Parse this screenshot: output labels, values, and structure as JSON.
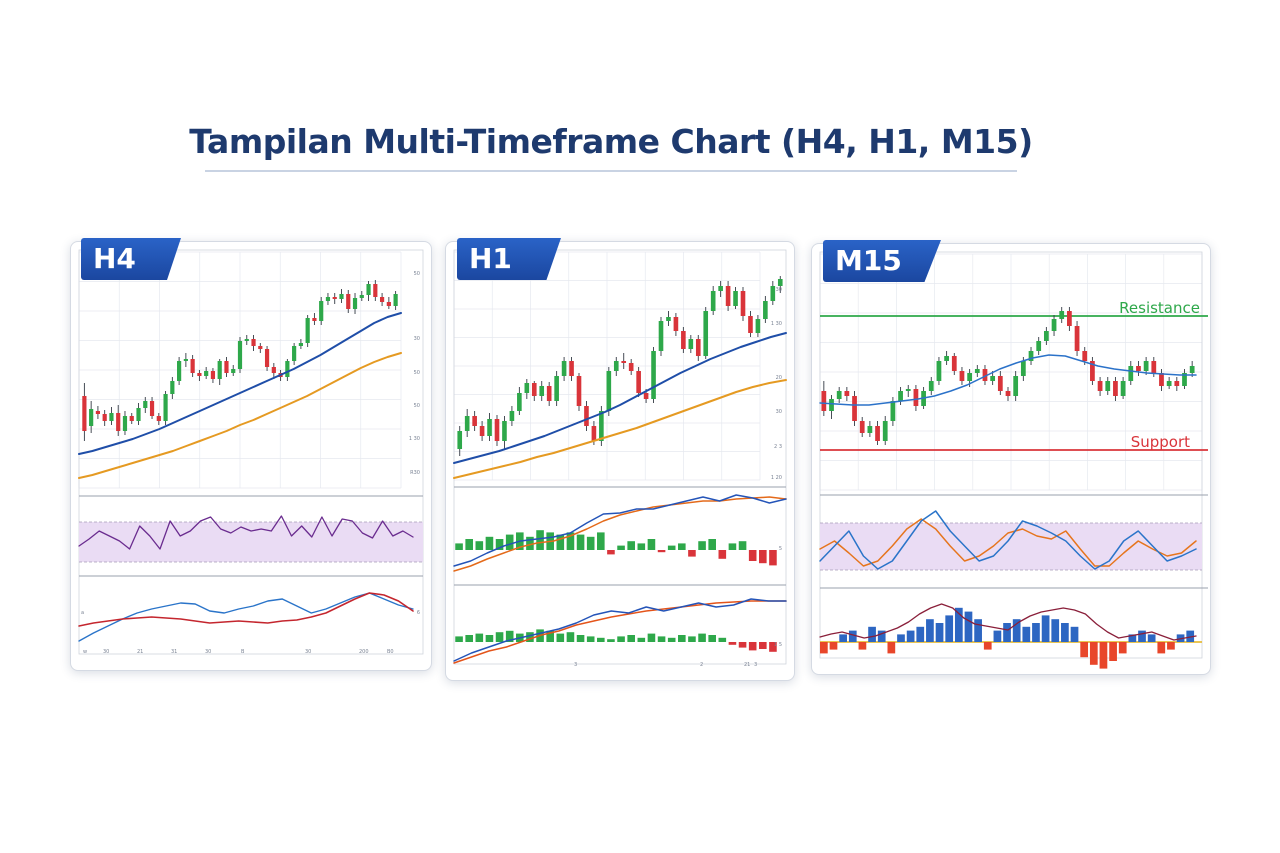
{
  "title": "Tampilan Multi-Timeframe Chart (H4, H1, M15)",
  "colors": {
    "title": "#1e3a6e",
    "label_bg": "#1f52b3",
    "candle_up": "#2ea84a",
    "candle_down": "#d9343a",
    "ma_fast": "#1f4ea8",
    "ma_slow": "#e59a22",
    "resistance": "#2ea84a",
    "support": "#d9343a",
    "band": "#eadcf4"
  },
  "chart_data": [
    {
      "type": "candlestick",
      "timeframe": "H4",
      "panes": [
        "price",
        "oscillator",
        "lines"
      ],
      "candles": [
        [
          395,
          430,
          382,
          440
        ],
        [
          425,
          408,
          400,
          432
        ],
        [
          410,
          413,
          405,
          418
        ],
        [
          413,
          420,
          409,
          425
        ],
        [
          420,
          412,
          406,
          424
        ],
        [
          412,
          430,
          404,
          435
        ],
        [
          430,
          415,
          410,
          434
        ],
        [
          415,
          420,
          412,
          423
        ],
        [
          420,
          407,
          402,
          424
        ],
        [
          407,
          400,
          396,
          412
        ],
        [
          400,
          415,
          396,
          418
        ],
        [
          415,
          420,
          412,
          424
        ],
        [
          420,
          393,
          390,
          424
        ],
        [
          393,
          380,
          376,
          398
        ],
        [
          380,
          360,
          356,
          384
        ],
        [
          360,
          358,
          352,
          366
        ],
        [
          358,
          372,
          354,
          376
        ],
        [
          372,
          375,
          369,
          380
        ],
        [
          375,
          370,
          366,
          378
        ],
        [
          370,
          378,
          367,
          382
        ],
        [
          378,
          360,
          358,
          384
        ],
        [
          360,
          372,
          356,
          376
        ],
        [
          372,
          368,
          364,
          375
        ],
        [
          368,
          340,
          336,
          372
        ],
        [
          340,
          338,
          334,
          344
        ],
        [
          338,
          345,
          334,
          350
        ],
        [
          345,
          348,
          342,
          352
        ],
        [
          348,
          366,
          345,
          370
        ],
        [
          366,
          372,
          362,
          378
        ],
        [
          372,
          376,
          369,
          380
        ],
        [
          376,
          360,
          358,
          380
        ],
        [
          360,
          345,
          342,
          364
        ],
        [
          345,
          342,
          338,
          348
        ],
        [
          342,
          317,
          314,
          346
        ],
        [
          317,
          320,
          312,
          324
        ],
        [
          320,
          300,
          296,
          324
        ],
        [
          300,
          296,
          292,
          304
        ],
        [
          296,
          298,
          292,
          303
        ],
        [
          298,
          293,
          288,
          302
        ],
        [
          293,
          308,
          289,
          312
        ],
        [
          308,
          297,
          292,
          313
        ],
        [
          297,
          294,
          290,
          300
        ],
        [
          294,
          283,
          280,
          300
        ],
        [
          283,
          296,
          279,
          300
        ],
        [
          296,
          301,
          292,
          305
        ],
        [
          301,
          305,
          296,
          308
        ],
        [
          305,
          293,
          290,
          309
        ]
      ],
      "ma_fast": [
        453,
        450,
        446,
        442,
        438,
        433,
        428,
        422,
        416,
        410,
        404,
        398,
        392,
        386,
        380,
        374,
        368,
        361,
        354,
        346,
        338,
        330,
        322,
        316,
        312
      ],
      "ma_slow": [
        477,
        474,
        470,
        466,
        462,
        458,
        454,
        450,
        445,
        440,
        435,
        430,
        424,
        419,
        413,
        407,
        401,
        395,
        388,
        381,
        374,
        367,
        361,
        356,
        352
      ],
      "osc": [
        545,
        538,
        530,
        535,
        540,
        548,
        525,
        535,
        548,
        520,
        535,
        530,
        520,
        516,
        528,
        532,
        526,
        530,
        528,
        530,
        515,
        535,
        525,
        536,
        516,
        535,
        518,
        520,
        532,
        537,
        520,
        535,
        530,
        536
      ]
    },
    {
      "type": "candlestick",
      "timeframe": "H1",
      "panes": [
        "price",
        "histogram",
        "histogram"
      ],
      "candles": [
        [
          448,
          430,
          425,
          455
        ],
        [
          430,
          415,
          408,
          436
        ],
        [
          415,
          425,
          410,
          430
        ],
        [
          425,
          435,
          420,
          440
        ],
        [
          435,
          418,
          412,
          440
        ],
        [
          418,
          440,
          414,
          445
        ],
        [
          440,
          420,
          415,
          448
        ],
        [
          420,
          410,
          405,
          425
        ],
        [
          410,
          392,
          386,
          414
        ],
        [
          392,
          382,
          378,
          398
        ],
        [
          382,
          395,
          380,
          400
        ],
        [
          395,
          385,
          380,
          400
        ],
        [
          385,
          400,
          381,
          405
        ],
        [
          400,
          375,
          370,
          405
        ],
        [
          375,
          360,
          356,
          380
        ],
        [
          360,
          375,
          356,
          380
        ],
        [
          375,
          405,
          372,
          410
        ],
        [
          405,
          425,
          400,
          430
        ],
        [
          425,
          440,
          420,
          444
        ],
        [
          440,
          410,
          405,
          445
        ],
        [
          410,
          370,
          366,
          415
        ],
        [
          370,
          360,
          356,
          375
        ],
        [
          360,
          362,
          352,
          368
        ],
        [
          362,
          370,
          358,
          374
        ],
        [
          370,
          392,
          366,
          396
        ],
        [
          392,
          398,
          388,
          402
        ],
        [
          398,
          350,
          346,
          402
        ],
        [
          350,
          320,
          316,
          355
        ],
        [
          320,
          316,
          310,
          325
        ],
        [
          316,
          330,
          312,
          335
        ],
        [
          330,
          348,
          326,
          352
        ],
        [
          348,
          338,
          334,
          352
        ],
        [
          338,
          355,
          334,
          360
        ],
        [
          355,
          310,
          306,
          358
        ],
        [
          310,
          290,
          285,
          314
        ],
        [
          290,
          285,
          280,
          296
        ],
        [
          285,
          305,
          280,
          310
        ],
        [
          305,
          290,
          286,
          308
        ],
        [
          290,
          315,
          286,
          320
        ],
        [
          315,
          332,
          310,
          336
        ],
        [
          332,
          318,
          314,
          336
        ],
        [
          318,
          300,
          295,
          322
        ],
        [
          300,
          285,
          280,
          304
        ],
        [
          285,
          278,
          275,
          292
        ]
      ],
      "ma_fast": [
        462,
        458,
        454,
        450,
        445,
        440,
        435,
        429,
        423,
        417,
        411,
        404,
        396,
        388,
        380,
        372,
        365,
        358,
        352,
        346,
        341,
        336,
        332
      ],
      "ma_slow": [
        477,
        473,
        469,
        465,
        461,
        456,
        452,
        447,
        442,
        437,
        432,
        427,
        421,
        415,
        409,
        403,
        397,
        391,
        386,
        382,
        379
      ],
      "hist1": [
        0.3,
        0.5,
        0.4,
        0.6,
        0.5,
        0.7,
        0.8,
        0.6,
        0.9,
        0.8,
        0.7,
        0.8,
        0.7,
        0.6,
        0.8,
        -0.2,
        0.2,
        0.4,
        0.3,
        0.5,
        -0.1,
        0.2,
        0.3,
        -0.3,
        0.4,
        0.5,
        -0.4,
        0.3,
        0.4,
        -0.5,
        -0.6,
        -0.7
      ],
      "hist2": [
        0.4,
        0.5,
        0.6,
        0.5,
        0.7,
        0.8,
        0.6,
        0.7,
        0.9,
        0.8,
        0.6,
        0.7,
        0.5,
        0.4,
        0.3,
        0.2,
        0.4,
        0.5,
        0.3,
        0.6,
        0.4,
        0.3,
        0.5,
        0.4,
        0.6,
        0.5,
        0.3,
        -0.2,
        -0.4,
        -0.6,
        -0.5,
        -0.7
      ]
    },
    {
      "type": "candlestick",
      "timeframe": "M15",
      "panes": [
        "price",
        "oscillator",
        "histogram"
      ],
      "support_label": "Support",
      "resistance_label": "Resistance",
      "candles": [
        [
          390,
          410,
          380,
          415
        ],
        [
          410,
          398,
          394,
          418
        ],
        [
          398,
          390,
          386,
          402
        ],
        [
          390,
          395,
          386,
          400
        ],
        [
          395,
          420,
          390,
          425
        ],
        [
          420,
          432,
          416,
          436
        ],
        [
          432,
          425,
          420,
          436
        ],
        [
          425,
          440,
          420,
          444
        ],
        [
          440,
          420,
          415,
          444
        ],
        [
          420,
          400,
          396,
          425
        ],
        [
          400,
          390,
          386,
          404
        ],
        [
          390,
          388,
          384,
          396
        ],
        [
          388,
          405,
          384,
          410
        ],
        [
          405,
          390,
          386,
          408
        ],
        [
          390,
          380,
          376,
          394
        ],
        [
          380,
          360,
          356,
          384
        ],
        [
          360,
          355,
          350,
          364
        ],
        [
          355,
          370,
          352,
          374
        ],
        [
          370,
          380,
          366,
          384
        ],
        [
          380,
          372,
          368,
          386
        ],
        [
          372,
          368,
          364,
          376
        ],
        [
          368,
          380,
          364,
          384
        ],
        [
          380,
          375,
          370,
          384
        ],
        [
          375,
          390,
          370,
          394
        ],
        [
          390,
          395,
          386,
          400
        ],
        [
          395,
          375,
          370,
          400
        ],
        [
          375,
          360,
          356,
          380
        ],
        [
          360,
          350,
          346,
          364
        ],
        [
          350,
          340,
          336,
          354
        ],
        [
          340,
          330,
          326,
          344
        ],
        [
          330,
          318,
          314,
          335
        ],
        [
          318,
          310,
          306,
          322
        ],
        [
          310,
          325,
          306,
          330
        ],
        [
          325,
          350,
          320,
          355
        ],
        [
          350,
          360,
          346,
          364
        ],
        [
          360,
          380,
          356,
          384
        ],
        [
          380,
          390,
          376,
          395
        ],
        [
          390,
          380,
          376,
          394
        ],
        [
          380,
          395,
          376,
          400
        ],
        [
          395,
          380,
          376,
          398
        ],
        [
          380,
          365,
          360,
          384
        ],
        [
          365,
          370,
          360,
          375
        ],
        [
          370,
          360,
          356,
          374
        ],
        [
          360,
          372,
          356,
          376
        ],
        [
          372,
          385,
          368,
          390
        ],
        [
          385,
          380,
          376,
          388
        ],
        [
          380,
          385,
          376,
          390
        ],
        [
          385,
          372,
          368,
          388
        ],
        [
          372,
          365,
          360,
          376
        ]
      ],
      "ma": [
        402,
        403,
        404,
        404,
        402,
        400,
        398,
        395,
        390,
        384,
        376,
        368,
        362,
        357,
        354,
        355,
        360,
        365,
        368,
        370,
        372,
        373,
        374,
        374
      ],
      "osc1": [
        560,
        545,
        530,
        555,
        568,
        560,
        540,
        520,
        510,
        530,
        545,
        560,
        555,
        540,
        520,
        525,
        532,
        540,
        555,
        568,
        560,
        540,
        530,
        545,
        560,
        555,
        548
      ],
      "osc2": [
        548,
        540,
        552,
        565,
        560,
        545,
        528,
        518,
        528,
        545,
        560,
        555,
        545,
        532,
        528,
        535,
        538,
        530,
        548,
        565,
        565,
        552,
        540,
        548,
        555,
        552,
        540
      ],
      "hist": [
        -0.3,
        -0.2,
        0.2,
        0.3,
        -0.2,
        0.4,
        0.3,
        -0.3,
        0.2,
        0.3,
        0.4,
        0.6,
        0.5,
        0.7,
        0.9,
        0.8,
        0.6,
        -0.2,
        0.3,
        0.5,
        0.6,
        0.4,
        0.5,
        0.7,
        0.6,
        0.5,
        0.4,
        -0.4,
        -0.6,
        -0.7,
        -0.5,
        -0.3,
        0.2,
        0.3,
        0.2,
        -0.3,
        -0.2,
        0.2,
        0.3
      ]
    }
  ],
  "panels": [
    {
      "label": "H4"
    },
    {
      "label": "H1"
    },
    {
      "label": "M15"
    }
  ],
  "h4_axis": {
    "right": [
      "50",
      "30",
      "50",
      "50",
      "1 30",
      "R30"
    ],
    "bottom": [
      "w",
      "30",
      "21",
      "31",
      "30",
      "B",
      "30",
      "200",
      "B0"
    ],
    "left": [
      "a",
      "6"
    ]
  },
  "h1_axis": {
    "right": [
      "30",
      "1 30",
      "20",
      "30",
      "2 3",
      "1 20",
      "5",
      "1 5"
    ],
    "bottom": [
      "3",
      "2",
      "21",
      "3"
    ]
  }
}
